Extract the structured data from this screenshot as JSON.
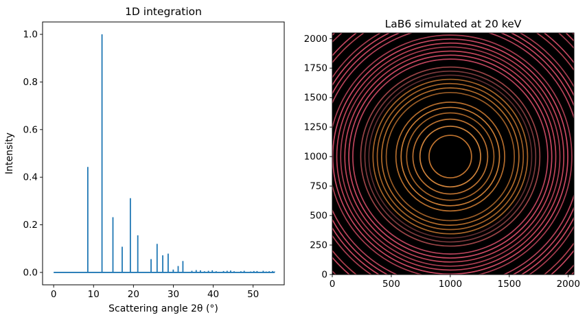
{
  "figure": {
    "background": "#ffffff",
    "spine_color": "#000000",
    "tick_color": "#000000"
  },
  "chart_data": [
    {
      "type": "line",
      "title": "1D integration",
      "xlabel": "Scattering angle 2θ (°)",
      "ylabel": "Intensity",
      "xlim": [
        -2.78,
        57.8
      ],
      "ylim": [
        -0.052,
        1.052
      ],
      "xticks": [
        0,
        10,
        20,
        30,
        40,
        50
      ],
      "yticks": [
        0.0,
        0.2,
        0.4,
        0.6,
        0.8,
        1.0
      ],
      "ytick_labels": [
        "0.0",
        "0.2",
        "0.4",
        "0.6",
        "0.8",
        "1.0"
      ],
      "grid": false,
      "line_color": "#1f77b4",
      "baseline": {
        "x_start": 0.0,
        "x_end": 55.4,
        "y": 0.0
      },
      "peaks": {
        "tth": [
          8.56,
          12.12,
          14.86,
          17.18,
          19.23,
          21.09,
          24.42,
          25.93,
          27.35,
          28.7,
          29.98,
          31.21,
          32.4,
          34.65,
          35.73,
          36.78,
          37.8,
          38.8,
          39.77,
          40.73,
          42.58,
          43.48,
          44.36,
          45.23,
          46.93,
          47.76,
          49.39,
          50.19,
          50.98,
          52.53,
          53.28,
          54.03,
          54.9,
          55.35
        ],
        "intensity": [
          0.443,
          1.0,
          0.232,
          0.108,
          0.312,
          0.156,
          0.056,
          0.12,
          0.072,
          0.079,
          0.012,
          0.027,
          0.048,
          0.007,
          0.01,
          0.009,
          0.005,
          0.007,
          0.009,
          0.005,
          0.006,
          0.007,
          0.008,
          0.005,
          0.005,
          0.007,
          0.004,
          0.006,
          0.006,
          0.007,
          0.004,
          0.005,
          0.006,
          0.004
        ]
      }
    },
    {
      "type": "heatmap",
      "title": "LaB6 simulated at 20 keV",
      "xlabel": "",
      "ylabel": "",
      "xlim": [
        0,
        2048
      ],
      "ylim": [
        0,
        2048
      ],
      "xticks": [
        0,
        500,
        1000,
        1500,
        2000
      ],
      "yticks": [
        0,
        250,
        500,
        750,
        1000,
        1250,
        1500,
        1750,
        2000
      ],
      "background": "#000000",
      "beam_center": {
        "x": 1000,
        "y": 1000
      },
      "rings": [
        {
          "tth": 8.56,
          "r": 180,
          "color": "#c1742f"
        },
        {
          "tth": 12.12,
          "r": 257,
          "color": "#d0833b"
        },
        {
          "tth": 14.86,
          "r": 317,
          "color": "#bb7130"
        },
        {
          "tth": 17.18,
          "r": 370,
          "color": "#a66327"
        },
        {
          "tth": 19.23,
          "r": 417,
          "color": "#c97c34"
        },
        {
          "tth": 21.09,
          "r": 461,
          "color": "#b56d2c"
        },
        {
          "tth": 24.42,
          "r": 543,
          "color": "#9a5c26"
        },
        {
          "tth": 25.93,
          "r": 582,
          "color": "#b36c2b"
        },
        {
          "tth": 27.35,
          "r": 619,
          "color": "#a36127"
        },
        {
          "tth": 28.7,
          "r": 655,
          "color": "#a86429"
        },
        {
          "tth": 29.98,
          "r": 690,
          "color": "#612e30"
        },
        {
          "tth": 31.21,
          "r": 724,
          "color": "#7d3a3d"
        },
        {
          "tth": 32.4,
          "r": 759,
          "color": "#9c4447"
        },
        {
          "tth": 34.65,
          "r": 826,
          "color": "#bb445b"
        },
        {
          "tth": 35.73,
          "r": 860,
          "color": "#c94862"
        },
        {
          "tth": 36.78,
          "r": 894,
          "color": "#c04459"
        },
        {
          "tth": 37.8,
          "r": 929,
          "color": "#a83d50"
        },
        {
          "tth": 38.8,
          "r": 962,
          "color": "#c04459"
        },
        {
          "tth": 39.77,
          "r": 996,
          "color": "#cb4963"
        },
        {
          "tth": 40.73,
          "r": 1030,
          "color": "#a83d50"
        },
        {
          "tth": 42.58,
          "r": 1099,
          "color": "#b8435a"
        },
        {
          "tth": 43.48,
          "r": 1134,
          "color": "#c64760"
        },
        {
          "tth": 44.36,
          "r": 1169,
          "color": "#c94961"
        },
        {
          "tth": 45.23,
          "r": 1204,
          "color": "#a83d50"
        },
        {
          "tth": 46.93,
          "r": 1279,
          "color": "#b0404f"
        },
        {
          "tth": 47.76,
          "r": 1316,
          "color": "#c64760"
        },
        {
          "tth": 49.39,
          "r": 1394,
          "color": "#a23c4e"
        },
        {
          "tth": 50.19,
          "r": 1435,
          "color": "#c04459"
        },
        {
          "tth": 50.98,
          "r": 1475,
          "color": "#c34560"
        }
      ]
    }
  ]
}
